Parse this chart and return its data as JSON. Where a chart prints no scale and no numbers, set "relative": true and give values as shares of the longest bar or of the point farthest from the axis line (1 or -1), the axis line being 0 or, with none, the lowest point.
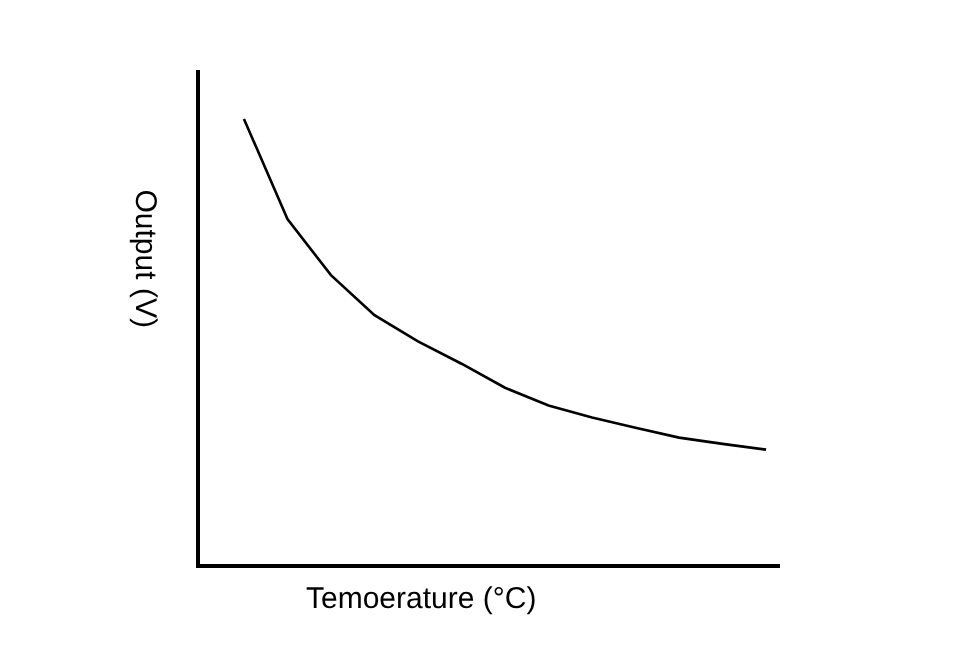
{
  "chart_data": {
    "type": "line",
    "relative": true,
    "xlabel": "Temoerature (°C)",
    "ylabel": "Output (V)",
    "categories": [
      null,
      null,
      null,
      null,
      null,
      null,
      null,
      null,
      null,
      null,
      null,
      null,
      null
    ],
    "series": [
      {
        "color": "#000000",
        "values": [
          1,
          0.775,
          0.649,
          0.559,
          0.5,
          0.45,
          0.396,
          0.356,
          0.329,
          0.306,
          0.284,
          0.27,
          0.257
        ]
      }
    ],
    "marker": "none",
    "line_style": "solid"
  }
}
